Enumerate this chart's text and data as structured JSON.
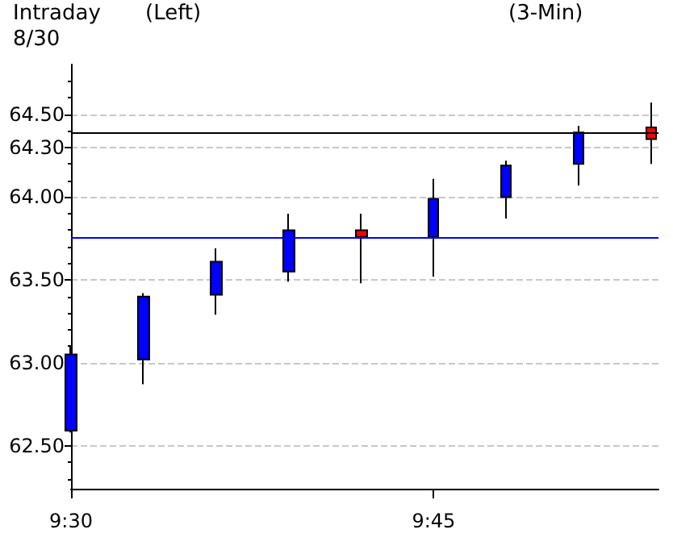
{
  "chart_data": {
    "type": "candlestick",
    "title": "Intraday",
    "subtitle": "8/30",
    "annotations": [
      "(Left)",
      "(3-Min)"
    ],
    "x": [
      9.5,
      9.55,
      9.6,
      9.65,
      9.7,
      9.75,
      9.8,
      9.85,
      9.9
    ],
    "ohlc": [
      [
        62.59,
        63.1,
        62.58,
        63.05
      ],
      [
        63.02,
        63.42,
        62.87,
        63.4
      ],
      [
        63.41,
        63.69,
        63.29,
        63.61
      ],
      [
        63.55,
        63.9,
        63.49,
        63.8
      ],
      [
        63.8,
        63.9,
        63.48,
        63.76
      ],
      [
        63.76,
        64.11,
        63.52,
        63.99
      ],
      [
        64.0,
        64.22,
        63.87,
        64.19
      ],
      [
        64.2,
        64.43,
        64.07,
        64.39
      ],
      [
        64.42,
        64.57,
        64.2,
        64.35
      ]
    ],
    "colors": [
      "#0000ff",
      "#0000ff",
      "#0000ff",
      "#0000ff",
      "#ff0000",
      "#0000ff",
      "#0000ff",
      "#0000ff",
      "#ff0000"
    ],
    "xlim": [
      9.5,
      9.905
    ],
    "xticks": [
      {
        "value": 9.5,
        "label": "9:30"
      },
      {
        "value": 9.75,
        "label": "9:45"
      }
    ],
    "ylim": [
      62.24,
      64.8
    ],
    "yticks": [
      {
        "value": 62.5,
        "label": "62.50"
      },
      {
        "value": 63,
        "label": "63.00"
      },
      {
        "value": 63.5,
        "label": "63.50"
      },
      {
        "value": 64,
        "label": "64.00"
      },
      {
        "value": 64.3,
        "label": "64.30"
      },
      {
        "value": 64.5,
        "label": "64.50"
      }
    ],
    "ref_lines": [
      {
        "axis": "y",
        "value": 64.39,
        "color": "#000000"
      },
      {
        "axis": "y",
        "value": 63.76,
        "color": "#0000ff"
      }
    ],
    "grid": "y"
  }
}
